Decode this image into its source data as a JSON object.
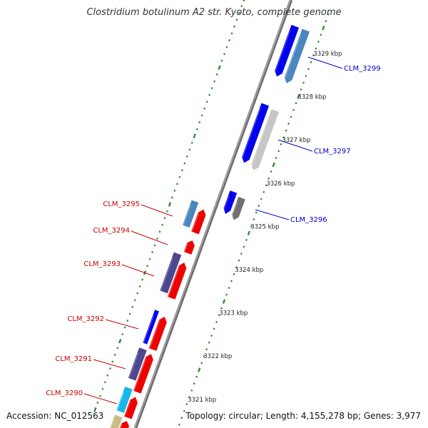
{
  "title": "Clostridium botulinum A2 str. Kyoto, complete genome",
  "accession": "Accession: NC_012563",
  "summary": "Topology: circular; Length: 4,155,278 bp; Genes: 3,977",
  "colors": {
    "backbone": "#8a8a8a",
    "tick": "#2e8b2e",
    "minus_label": "#cc0000",
    "plus_label": "#0000cc"
  },
  "kbp_marks": [
    {
      "label": "3329 kbp",
      "kbp": 3329
    },
    {
      "label": "3328 kbp",
      "kbp": 3328
    },
    {
      "label": "3327 kbp",
      "kbp": 3327
    },
    {
      "label": "3326 kbp",
      "kbp": 3326
    },
    {
      "label": "3325 kbp",
      "kbp": 3325
    },
    {
      "label": "3324 kbp",
      "kbp": 3324
    },
    {
      "label": "3323 kbp",
      "kbp": 3323
    },
    {
      "label": "3322 kbp",
      "kbp": 3322
    },
    {
      "label": "3321 kbp",
      "kbp": 3321
    }
  ],
  "labels": [
    {
      "text": "CLM_3299",
      "strand": "plus"
    },
    {
      "text": "CLM_3297",
      "strand": "plus"
    },
    {
      "text": "CLM_3296",
      "strand": "plus"
    },
    {
      "text": "CLM_3295",
      "strand": "minus"
    },
    {
      "text": "CLM_3294",
      "strand": "minus"
    },
    {
      "text": "CLM_3293",
      "strand": "minus"
    },
    {
      "text": "CLM_3292",
      "strand": "minus"
    },
    {
      "text": "CLM_3291",
      "strand": "minus"
    },
    {
      "text": "CLM_3290",
      "strand": "minus"
    }
  ]
}
